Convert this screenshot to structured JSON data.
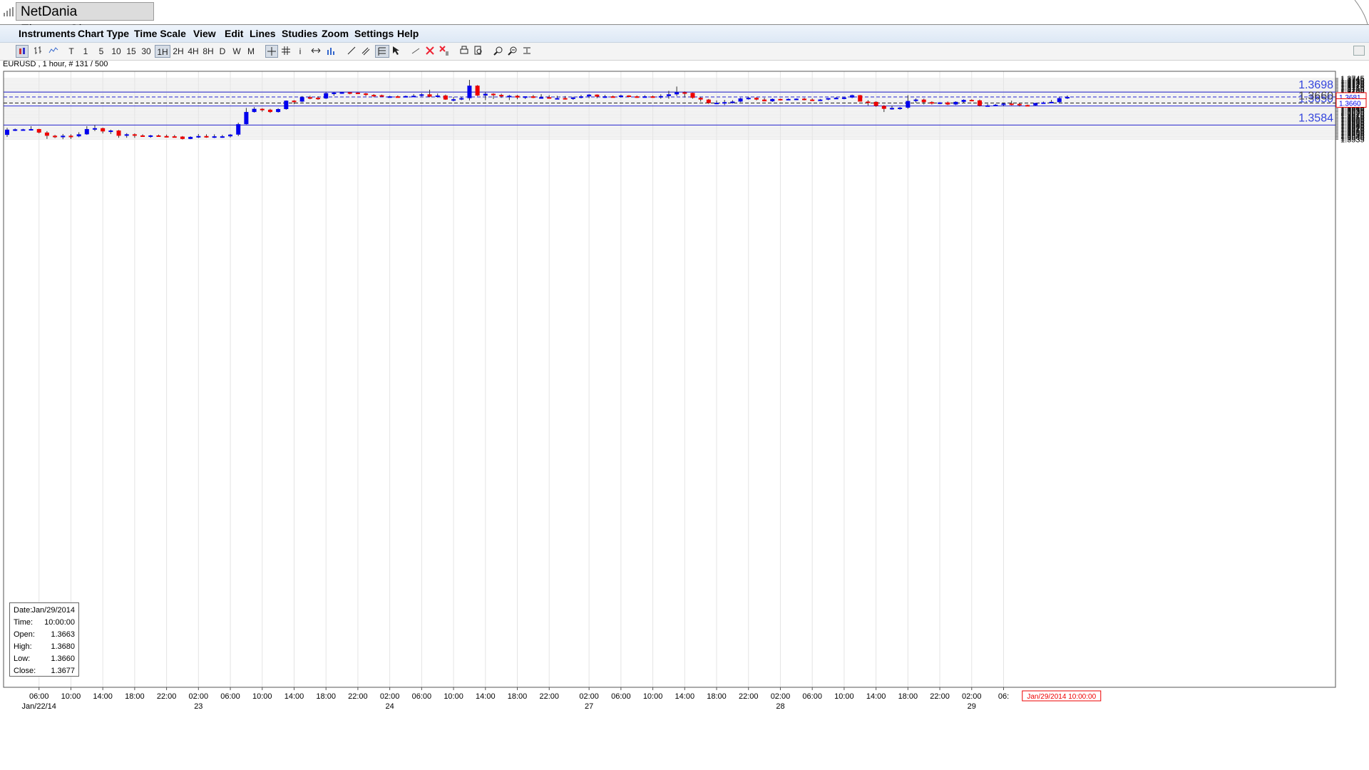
{
  "window": {
    "title": "NetDania FinanceChart"
  },
  "menu": [
    "Instruments",
    "Chart Type",
    "Time Scale",
    "View",
    "Edit",
    "Lines",
    "Studies",
    "Zoom",
    "Settings",
    "Help"
  ],
  "toolbar": {
    "timescales": [
      "T",
      "1",
      "5",
      "10",
      "15",
      "30",
      "1H",
      "2H",
      "4H",
      "8H",
      "D",
      "W",
      "M"
    ],
    "selected_timescale": "1H"
  },
  "instrument_label": "EURUSD , 1 hour, # 131 / 500",
  "info_box": {
    "rows": [
      {
        "label": "Date:",
        "value": "Jan/29/2014"
      },
      {
        "label": "Time:",
        "value": "10:00:00"
      },
      {
        "label": "Open:",
        "value": "1.3663"
      },
      {
        "label": "High:",
        "value": "1.3680"
      },
      {
        "label": "Low:",
        "value": "1.3660"
      },
      {
        "label": "Close:",
        "value": "1.3677"
      }
    ]
  },
  "colors": {
    "up": "#0000ee",
    "down": "#ee0000",
    "level_line": "#2222cc",
    "level_text": "#3344dd",
    "grid": "#e4e4e4",
    "crosshair_label": "#ee0000"
  },
  "chart_data": {
    "type": "candlestick",
    "ylim": [
      1.3533,
      1.3751
    ],
    "y_ticks": [
      1.3535,
      1.354,
      1.3545,
      1.355,
      1.3555,
      1.356,
      1.3565,
      1.357,
      1.3575,
      1.358,
      1.3585,
      1.359,
      1.3595,
      1.36,
      1.3605,
      1.361,
      1.3615,
      1.362,
      1.3625,
      1.363,
      1.3635,
      1.364,
      1.3645,
      1.365,
      1.3655,
      1.366,
      1.3665,
      1.367,
      1.3675,
      1.368,
      1.3685,
      1.369,
      1.3695,
      1.37,
      1.3705,
      1.371,
      1.3715,
      1.372,
      1.3725,
      1.373,
      1.3735,
      1.374,
      1.3745
    ],
    "x_ticks": [
      {
        "label": "06:00",
        "date": "Jan/22/14",
        "idx": 4
      },
      {
        "label": "10:00",
        "idx": 8
      },
      {
        "label": "14:00",
        "idx": 12
      },
      {
        "label": "18:00",
        "idx": 16
      },
      {
        "label": "22:00",
        "idx": 20
      },
      {
        "label": "02:00",
        "date": "23",
        "idx": 24
      },
      {
        "label": "06:00",
        "idx": 28
      },
      {
        "label": "10:00",
        "idx": 32
      },
      {
        "label": "14:00",
        "idx": 36
      },
      {
        "label": "18:00",
        "idx": 40
      },
      {
        "label": "22:00",
        "idx": 44
      },
      {
        "label": "02:00",
        "date": "24",
        "idx": 48
      },
      {
        "label": "06:00",
        "idx": 52
      },
      {
        "label": "10:00",
        "idx": 56
      },
      {
        "label": "14:00",
        "idx": 60
      },
      {
        "label": "18:00",
        "idx": 64
      },
      {
        "label": "22:00",
        "idx": 68
      },
      {
        "label": "02:00",
        "date": "27",
        "idx": 73
      },
      {
        "label": "06:00",
        "idx": 77
      },
      {
        "label": "10:00",
        "idx": 81
      },
      {
        "label": "14:00",
        "idx": 85
      },
      {
        "label": "18:00",
        "idx": 89
      },
      {
        "label": "22:00",
        "idx": 93
      },
      {
        "label": "02:00",
        "date": "28",
        "idx": 97
      },
      {
        "label": "06:00",
        "idx": 101
      },
      {
        "label": "10:00",
        "idx": 105
      },
      {
        "label": "14:00",
        "idx": 109
      },
      {
        "label": "18:00",
        "idx": 113
      },
      {
        "label": "22:00",
        "idx": 117
      },
      {
        "label": "02:00",
        "date": "29",
        "idx": 121
      },
      {
        "label": "06:",
        "idx": 125
      }
    ],
    "crosshair_time_label": "Jan/29/2014 10:00:00",
    "levels": [
      {
        "value": 1.3698,
        "label": "1.3698",
        "style": "solid"
      },
      {
        "value": 1.365,
        "label": "1.3650",
        "style": "solid"
      },
      {
        "value": 1.3584,
        "label": "1.3584",
        "style": "solid"
      },
      {
        "value": 1.366,
        "label": "1.3660",
        "style": "dashed-black"
      },
      {
        "value": 1.3681,
        "label": "1.3681",
        "style": "dashed-blue"
      }
    ],
    "price_badges": [
      {
        "value": 1.3681,
        "label": "1.3681"
      },
      {
        "value": 1.366,
        "label": "1.3660"
      }
    ],
    "ohlc": [
      [
        1.355,
        1.3574,
        1.3543,
        1.3568
      ],
      [
        1.3568,
        1.3572,
        1.3563,
        1.3569
      ],
      [
        1.3569,
        1.3571,
        1.3565,
        1.3569
      ],
      [
        1.3569,
        1.358,
        1.3566,
        1.357
      ],
      [
        1.357,
        1.3571,
        1.3555,
        1.3558
      ],
      [
        1.3558,
        1.3563,
        1.3536,
        1.3547
      ],
      [
        1.3547,
        1.355,
        1.3539,
        1.3542
      ],
      [
        1.3542,
        1.3553,
        1.3535,
        1.3547
      ],
      [
        1.3547,
        1.3552,
        1.3536,
        1.3545
      ],
      [
        1.3545,
        1.3559,
        1.3542,
        1.3552
      ],
      [
        1.3552,
        1.358,
        1.355,
        1.357
      ],
      [
        1.357,
        1.3584,
        1.3563,
        1.3573
      ],
      [
        1.3573,
        1.3575,
        1.3555,
        1.3562
      ],
      [
        1.3562,
        1.3568,
        1.3553,
        1.3565
      ],
      [
        1.3565,
        1.3567,
        1.354,
        1.3547
      ],
      [
        1.3547,
        1.3556,
        1.354,
        1.3552
      ],
      [
        1.3552,
        1.3555,
        1.354,
        1.3548
      ],
      [
        1.3548,
        1.3552,
        1.3543,
        1.3547
      ],
      [
        1.3547,
        1.355,
        1.354,
        1.3548
      ],
      [
        1.3548,
        1.3551,
        1.3545,
        1.3546
      ],
      [
        1.3546,
        1.3551,
        1.3541,
        1.3545
      ],
      [
        1.3545,
        1.355,
        1.3541,
        1.3544
      ],
      [
        1.3544,
        1.3546,
        1.3534,
        1.3536
      ],
      [
        1.3536,
        1.3545,
        1.3535,
        1.3543
      ],
      [
        1.3543,
        1.3553,
        1.3539,
        1.3546
      ],
      [
        1.3546,
        1.3552,
        1.354,
        1.3543
      ],
      [
        1.3543,
        1.3552,
        1.3539,
        1.3545
      ],
      [
        1.3545,
        1.355,
        1.354,
        1.3545
      ],
      [
        1.3545,
        1.3553,
        1.3541,
        1.3551
      ],
      [
        1.3551,
        1.3592,
        1.3546,
        1.3587
      ],
      [
        1.3587,
        1.3643,
        1.3586,
        1.3629
      ],
      [
        1.3629,
        1.3646,
        1.3627,
        1.364
      ],
      [
        1.364,
        1.3642,
        1.363,
        1.3637
      ],
      [
        1.3637,
        1.364,
        1.3626,
        1.3629
      ],
      [
        1.3629,
        1.3642,
        1.3627,
        1.3639
      ],
      [
        1.3639,
        1.3669,
        1.3637,
        1.3668
      ],
      [
        1.3668,
        1.367,
        1.3656,
        1.3665
      ],
      [
        1.3665,
        1.3684,
        1.3663,
        1.368
      ],
      [
        1.368,
        1.3685,
        1.3673,
        1.3678
      ],
      [
        1.3678,
        1.3683,
        1.3671,
        1.3676
      ],
      [
        1.3676,
        1.3697,
        1.3674,
        1.3694
      ],
      [
        1.3694,
        1.3698,
        1.3685,
        1.3696
      ],
      [
        1.3696,
        1.3698,
        1.3692,
        1.3697
      ],
      [
        1.3697,
        1.3698,
        1.369,
        1.3696
      ],
      [
        1.3696,
        1.3697,
        1.3691,
        1.3693
      ],
      [
        1.3693,
        1.3695,
        1.3684,
        1.3688
      ],
      [
        1.3688,
        1.3691,
        1.368,
        1.3687
      ],
      [
        1.3687,
        1.3689,
        1.3682,
        1.3682
      ],
      [
        1.3682,
        1.3685,
        1.3681,
        1.3683
      ],
      [
        1.3683,
        1.3686,
        1.368,
        1.3682
      ],
      [
        1.3682,
        1.3686,
        1.3681,
        1.3684
      ],
      [
        1.3684,
        1.3691,
        1.3682,
        1.3685
      ],
      [
        1.3685,
        1.3694,
        1.3683,
        1.369
      ],
      [
        1.369,
        1.3706,
        1.368,
        1.3682
      ],
      [
        1.3682,
        1.3693,
        1.3679,
        1.3686
      ],
      [
        1.3686,
        1.3689,
        1.3671,
        1.3672
      ],
      [
        1.3672,
        1.3681,
        1.3666,
        1.3673
      ],
      [
        1.3673,
        1.3682,
        1.367,
        1.3677
      ],
      [
        1.3677,
        1.374,
        1.3669,
        1.372
      ],
      [
        1.372,
        1.3722,
        1.3684,
        1.3686
      ],
      [
        1.3686,
        1.3698,
        1.367,
        1.3692
      ],
      [
        1.3692,
        1.3694,
        1.3674,
        1.3688
      ],
      [
        1.3688,
        1.3692,
        1.3678,
        1.3683
      ],
      [
        1.3683,
        1.3688,
        1.367,
        1.3685
      ],
      [
        1.3685,
        1.3688,
        1.3673,
        1.3679
      ],
      [
        1.3679,
        1.3683,
        1.3674,
        1.3683
      ],
      [
        1.3683,
        1.3688,
        1.3677,
        1.3678
      ],
      [
        1.3678,
        1.3691,
        1.3676,
        1.368
      ],
      [
        1.368,
        1.3687,
        1.3675,
        1.3677
      ],
      [
        1.3677,
        1.3685,
        1.3675,
        1.3677
      ],
      [
        1.3677,
        1.3684,
        1.3672,
        1.3675
      ],
      [
        1.3675,
        1.3682,
        1.3671,
        1.3679
      ],
      [
        1.3679,
        1.3688,
        1.3676,
        1.3683
      ],
      [
        1.3683,
        1.3691,
        1.3677,
        1.3689
      ],
      [
        1.3689,
        1.369,
        1.3677,
        1.3682
      ],
      [
        1.3682,
        1.3688,
        1.3678,
        1.3683
      ],
      [
        1.3683,
        1.3686,
        1.3679,
        1.3682
      ],
      [
        1.3682,
        1.3689,
        1.3679,
        1.3686
      ],
      [
        1.3686,
        1.3687,
        1.368,
        1.3683
      ],
      [
        1.3683,
        1.3686,
        1.3678,
        1.3682
      ],
      [
        1.3682,
        1.3687,
        1.3679,
        1.3683
      ],
      [
        1.3683,
        1.3686,
        1.3678,
        1.368
      ],
      [
        1.368,
        1.369,
        1.3675,
        1.3684
      ],
      [
        1.3684,
        1.3702,
        1.3675,
        1.369
      ],
      [
        1.369,
        1.3717,
        1.3684,
        1.3697
      ],
      [
        1.3697,
        1.37,
        1.3679,
        1.3695
      ],
      [
        1.3695,
        1.3696,
        1.3675,
        1.3678
      ],
      [
        1.3678,
        1.3682,
        1.3665,
        1.3672
      ],
      [
        1.3672,
        1.3674,
        1.3657,
        1.366
      ],
      [
        1.366,
        1.3669,
        1.3656,
        1.3661
      ],
      [
        1.3661,
        1.3671,
        1.3653,
        1.3663
      ],
      [
        1.3663,
        1.367,
        1.3658,
        1.3665
      ],
      [
        1.3665,
        1.3678,
        1.3663,
        1.3676
      ],
      [
        1.3676,
        1.3682,
        1.3672,
        1.3678
      ],
      [
        1.3678,
        1.368,
        1.3669,
        1.3672
      ],
      [
        1.3672,
        1.3678,
        1.3666,
        1.3666
      ],
      [
        1.3666,
        1.3676,
        1.3664,
        1.3674
      ],
      [
        1.3674,
        1.3675,
        1.3669,
        1.3673
      ],
      [
        1.3673,
        1.3676,
        1.367,
        1.3674
      ],
      [
        1.3674,
        1.3676,
        1.367,
        1.3675
      ],
      [
        1.3675,
        1.3678,
        1.3669,
        1.3672
      ],
      [
        1.3672,
        1.3676,
        1.3667,
        1.367
      ],
      [
        1.367,
        1.3674,
        1.3667,
        1.3672
      ],
      [
        1.3672,
        1.3677,
        1.367,
        1.3677
      ],
      [
        1.3677,
        1.3681,
        1.3674,
        1.3678
      ],
      [
        1.3678,
        1.368,
        1.3673,
        1.3679
      ],
      [
        1.3679,
        1.3689,
        1.3677,
        1.3687
      ],
      [
        1.3687,
        1.3688,
        1.3665,
        1.3665
      ],
      [
        1.3665,
        1.367,
        1.3652,
        1.3664
      ],
      [
        1.3664,
        1.3666,
        1.3647,
        1.365
      ],
      [
        1.365,
        1.3653,
        1.3629,
        1.364
      ],
      [
        1.364,
        1.3651,
        1.3637,
        1.3643
      ],
      [
        1.3643,
        1.3647,
        1.3637,
        1.3644
      ],
      [
        1.3644,
        1.3687,
        1.364,
        1.3667
      ],
      [
        1.3667,
        1.3676,
        1.3661,
        1.3672
      ],
      [
        1.3672,
        1.3675,
        1.3655,
        1.3663
      ],
      [
        1.3663,
        1.3666,
        1.3655,
        1.3661
      ],
      [
        1.3661,
        1.3663,
        1.3656,
        1.3662
      ],
      [
        1.3662,
        1.3665,
        1.3653,
        1.3655
      ],
      [
        1.3655,
        1.3666,
        1.3653,
        1.3664
      ],
      [
        1.3664,
        1.3673,
        1.366,
        1.3671
      ],
      [
        1.3671,
        1.3673,
        1.3667,
        1.3669
      ],
      [
        1.3669,
        1.3672,
        1.3648,
        1.3651
      ],
      [
        1.3651,
        1.3657,
        1.365,
        1.3652
      ],
      [
        1.3652,
        1.3657,
        1.3651,
        1.3654
      ],
      [
        1.3654,
        1.3659,
        1.365,
        1.3658
      ],
      [
        1.3658,
        1.3668,
        1.3652,
        1.3657
      ],
      [
        1.3657,
        1.366,
        1.3648,
        1.3653
      ],
      [
        1.3653,
        1.3655,
        1.365,
        1.3652
      ],
      [
        1.3652,
        1.3661,
        1.3651,
        1.366
      ],
      [
        1.366,
        1.3665,
        1.3658,
        1.3662
      ],
      [
        1.3662,
        1.3671,
        1.3661,
        1.3664
      ],
      [
        1.3663,
        1.368,
        1.3662,
        1.3677
      ],
      [
        1.3677,
        1.3686,
        1.3674,
        1.3681
      ]
    ]
  }
}
